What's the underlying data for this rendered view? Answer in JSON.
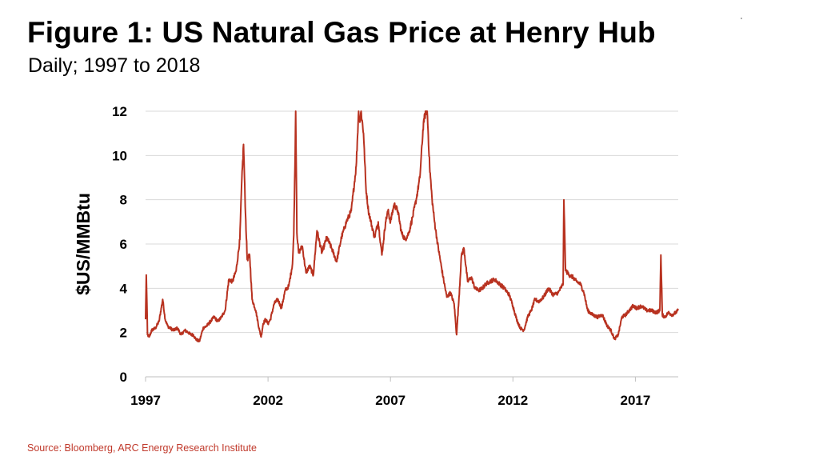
{
  "title": "Figure 1: US Natural Gas Price at Henry Hub",
  "subtitle": "Daily; 1997 to 2018",
  "source": "Source: Bloomberg, ARC Energy Research Institute",
  "colors": {
    "line": "#b83220",
    "grid": "#d9d9d9",
    "axis": "#bfbfbf",
    "source_text": "#c0392b"
  },
  "chart_data": {
    "type": "line",
    "title": "Figure 1: US Natural Gas Price at Henry Hub",
    "subtitle": "Daily; 1997 to 2018",
    "xlabel": "",
    "ylabel": "$US/MMBtu",
    "xlim": [
      1997.0,
      2018.75
    ],
    "ylim": [
      0,
      12
    ],
    "yticks": [
      0,
      2,
      4,
      6,
      8,
      10,
      12
    ],
    "xticks": [
      1997,
      2002,
      2007,
      2012,
      2017
    ],
    "xtick_labels": [
      "1997",
      "2002",
      "2007",
      "2012",
      "2017"
    ],
    "ytick_labels": [
      "0",
      "2",
      "4",
      "6",
      "8",
      "10",
      "12"
    ],
    "grid": "horizontal",
    "legend": "none",
    "series": [
      {
        "x": [
          1997.0,
          1997.03,
          1997.08,
          1997.15,
          1997.25,
          1997.4,
          1997.55,
          1997.7,
          1997.8,
          1997.9,
          1998.0,
          1998.15,
          1998.3,
          1998.45,
          1998.6,
          1998.75,
          1998.85,
          1998.95,
          1999.05,
          1999.2,
          1999.35,
          1999.5,
          1999.65,
          1999.8,
          1999.95,
          2000.1,
          2000.25,
          2000.4,
          2000.55,
          2000.7,
          2000.85,
          2000.92,
          2001.0,
          2001.04,
          2001.08,
          2001.15,
          2001.25,
          2001.35,
          2001.5,
          2001.65,
          2001.72,
          2001.8,
          2001.9,
          2002.0,
          2002.1,
          2002.25,
          2002.4,
          2002.55,
          2002.7,
          2002.85,
          2003.0,
          2003.05,
          2003.1,
          2003.13,
          2003.18,
          2003.25,
          2003.4,
          2003.55,
          2003.7,
          2003.85,
          2004.0,
          2004.2,
          2004.4,
          2004.6,
          2004.8,
          2005.0,
          2005.2,
          2005.4,
          2005.6,
          2005.7,
          2005.75,
          2005.8,
          2005.9,
          2006.0,
          2006.1,
          2006.2,
          2006.35,
          2006.5,
          2006.65,
          2006.8,
          2006.9,
          2007.0,
          2007.15,
          2007.3,
          2007.45,
          2007.6,
          2007.75,
          2007.9,
          2008.05,
          2008.2,
          2008.35,
          2008.45,
          2008.5,
          2008.6,
          2008.7,
          2008.8,
          2008.9,
          2009.0,
          2009.15,
          2009.3,
          2009.45,
          2009.6,
          2009.7,
          2009.8,
          2009.9,
          2010.0,
          2010.15,
          2010.3,
          2010.45,
          2010.6,
          2010.75,
          2010.9,
          2011.05,
          2011.25,
          2011.45,
          2011.65,
          2011.85,
          2012.0,
          2012.15,
          2012.3,
          2012.45,
          2012.6,
          2012.75,
          2012.9,
          2013.05,
          2013.25,
          2013.45,
          2013.65,
          2013.85,
          2013.95,
          2014.05,
          2014.08,
          2014.15,
          2014.3,
          2014.45,
          2014.6,
          2014.75,
          2014.9,
          2015.05,
          2015.25,
          2015.45,
          2015.65,
          2015.85,
          2016.0,
          2016.15,
          2016.3,
          2016.45,
          2016.6,
          2016.75,
          2016.9,
          2017.05,
          2017.25,
          2017.45,
          2017.65,
          2017.85,
          2018.0,
          2018.04,
          2018.1,
          2018.2,
          2018.35,
          2018.5,
          2018.65,
          2018.75
        ],
        "y": [
          2.6,
          4.6,
          1.9,
          1.8,
          2.1,
          2.2,
          2.5,
          3.5,
          2.6,
          2.3,
          2.2,
          2.1,
          2.2,
          1.9,
          2.1,
          2.0,
          1.9,
          1.9,
          1.7,
          1.6,
          2.2,
          2.3,
          2.5,
          2.7,
          2.5,
          2.7,
          3.0,
          4.4,
          4.3,
          4.8,
          6.2,
          8.6,
          10.5,
          9.0,
          7.4,
          5.3,
          5.5,
          3.5,
          3.0,
          2.1,
          1.8,
          2.4,
          2.6,
          2.4,
          2.6,
          3.3,
          3.5,
          3.1,
          3.9,
          4.1,
          5.1,
          6.4,
          9.5,
          12.0,
          6.5,
          5.6,
          5.9,
          4.7,
          5.0,
          4.6,
          6.6,
          5.6,
          6.3,
          5.8,
          5.2,
          6.3,
          7.0,
          7.5,
          9.5,
          12.0,
          11.5,
          12.0,
          11.0,
          8.5,
          7.5,
          7.0,
          6.3,
          7.0,
          5.5,
          7.0,
          7.5,
          7.0,
          7.8,
          7.5,
          6.5,
          6.2,
          6.5,
          7.2,
          8.0,
          9.0,
          11.5,
          12.0,
          12.0,
          9.5,
          8.0,
          7.0,
          6.2,
          5.5,
          4.5,
          3.6,
          3.8,
          3.3,
          1.9,
          3.6,
          5.5,
          5.8,
          4.3,
          4.5,
          4.0,
          3.9,
          4.0,
          4.2,
          4.3,
          4.4,
          4.2,
          4.0,
          3.7,
          3.2,
          2.6,
          2.2,
          2.1,
          2.7,
          3.0,
          3.5,
          3.4,
          3.6,
          4.0,
          3.7,
          3.8,
          4.0,
          4.2,
          8.0,
          4.8,
          4.6,
          4.5,
          4.3,
          4.2,
          3.8,
          3.0,
          2.8,
          2.7,
          2.8,
          2.3,
          2.1,
          1.7,
          1.9,
          2.7,
          2.8,
          3.0,
          3.2,
          3.1,
          3.2,
          3.0,
          3.0,
          2.9,
          3.0,
          5.5,
          2.8,
          2.7,
          2.9,
          2.8,
          2.9,
          3.0
        ]
      }
    ]
  }
}
